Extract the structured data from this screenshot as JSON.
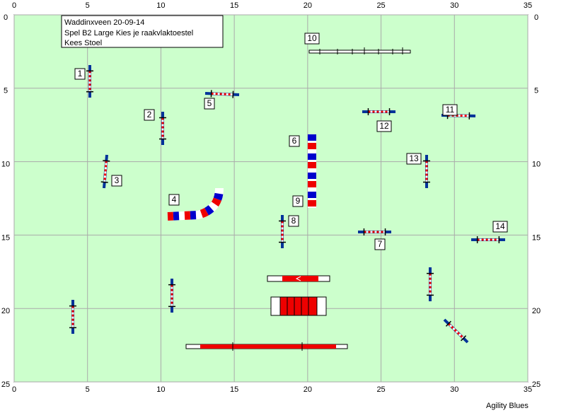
{
  "header": {
    "lines": [
      "Waddinxveen 20-09-14",
      "Spel B2 Large Kies je raakvlaktoestel",
      "Kees Stoel"
    ]
  },
  "axes": {
    "x_ticks": [
      0,
      5,
      10,
      15,
      20,
      25,
      30,
      35
    ],
    "y_ticks": [
      0,
      5,
      10,
      15,
      20,
      25
    ]
  },
  "obstacle_labels": [
    "1",
    "2",
    "3",
    "4",
    "5",
    "6",
    "7",
    "8",
    "9",
    "10",
    "11",
    "12",
    "13",
    "14"
  ],
  "footer": "Agility Blues"
}
